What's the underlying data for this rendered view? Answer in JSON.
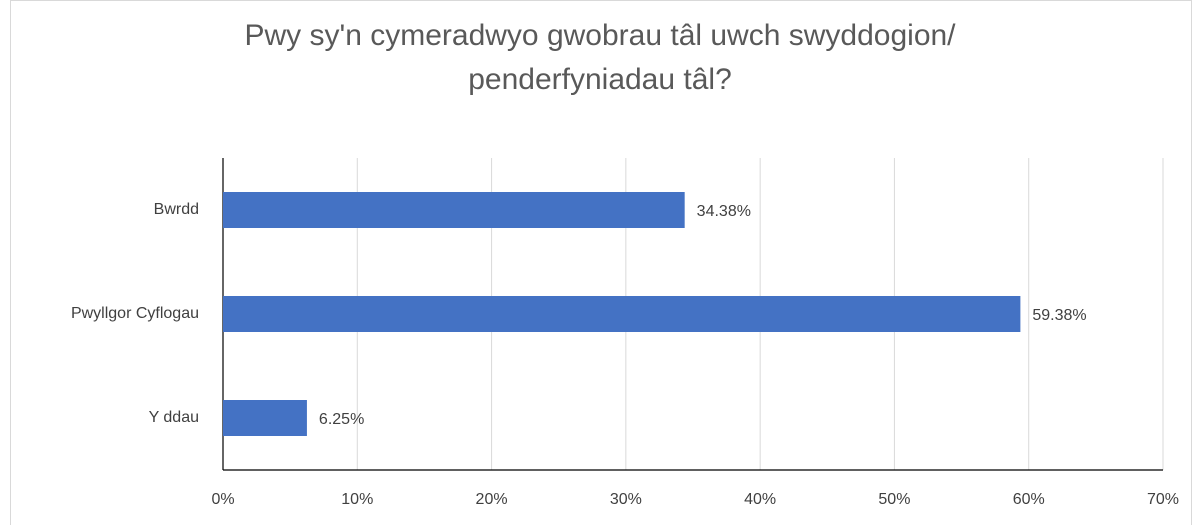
{
  "chart_data": {
    "type": "bar",
    "orientation": "horizontal",
    "title": "Pwy sy'n cymeradwyo gwobrau tâl uwch swyddogion/ penderfyniadau tâl?",
    "categories": [
      "Bwrdd",
      "Pwyllgor Cyflogau",
      "Y ddau"
    ],
    "values": [
      34.38,
      59.38,
      6.25
    ],
    "value_labels": [
      "34.38%",
      "59.38%",
      "6.25%"
    ],
    "color": "#4472c4",
    "xlim": [
      0,
      70
    ],
    "xticks": [
      {
        "value": 0,
        "label": "0%"
      },
      {
        "value": 10,
        "label": "10%"
      },
      {
        "value": 20,
        "label": "20%"
      },
      {
        "value": 30,
        "label": "30%"
      },
      {
        "value": 40,
        "label": "40%"
      },
      {
        "value": 50,
        "label": "50%"
      },
      {
        "value": 60,
        "label": "60%"
      },
      {
        "value": 70,
        "label": "70%"
      }
    ],
    "grid": true
  }
}
